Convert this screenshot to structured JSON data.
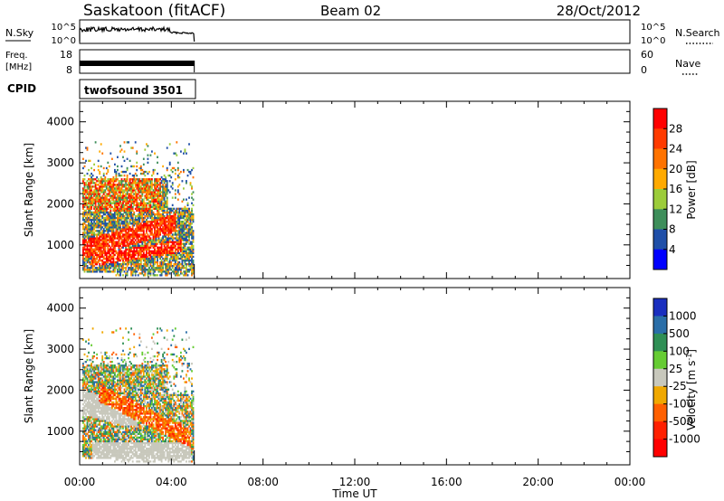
{
  "header": {
    "station": "Saskatoon (fitACF)",
    "beam": "Beam 02",
    "date": "28/Oct/2012"
  },
  "panels": {
    "nsky_label": "N.Sky",
    "nsky_ticks": [
      "10^5",
      "10^0"
    ],
    "nsearch_label": "N.Search",
    "freq_label_1": "Freq.",
    "freq_label_2": "[MHz]",
    "freq_ticks": [
      "18",
      "8"
    ],
    "nave_label": "Nave",
    "nave_ticks": [
      "60",
      "0"
    ],
    "cpid_label": "CPID",
    "cpid_value": "twofsound 3501"
  },
  "chart_data": [
    {
      "type": "heatmap",
      "name": "power",
      "ylabel": "Slant Range [km]",
      "xlabel": "",
      "ylim": [
        180,
        4500
      ],
      "yticks": [
        1000,
        2000,
        3000,
        4000
      ],
      "xlim": [
        0,
        24
      ],
      "data_extent_hours": [
        0,
        5
      ],
      "colorbar_label": "Power [dB]",
      "colorbar_ticks": [
        "28",
        "24",
        "20",
        "16",
        "12",
        "8",
        "4"
      ],
      "colors": [
        "#ff0000",
        "#ff3b00",
        "#ff7300",
        "#ffaa00",
        "#9ccc3a",
        "#3e8e5a",
        "#1f4fa8",
        "#0000ff"
      ]
    },
    {
      "type": "heatmap",
      "name": "velocity",
      "ylabel": "Slant Range [km]",
      "xlabel": "Time UT",
      "ylim": [
        180,
        4500
      ],
      "yticks": [
        1000,
        2000,
        3000,
        4000
      ],
      "xlim": [
        0,
        24
      ],
      "xticks": [
        "00:00",
        "04:00",
        "08:00",
        "12:00",
        "16:00",
        "20:00",
        "00:00"
      ],
      "data_extent_hours": [
        0,
        5
      ],
      "colorbar_label": "Velocity [m s",
      "colorbar_label_sup": "-1",
      "colorbar_label_end": "]",
      "colorbar_ticks": [
        "1000",
        "500",
        "100",
        "25",
        "-25",
        "-100",
        "-500",
        "-1000"
      ],
      "colors": [
        "#1a2fbf",
        "#2a6ea8",
        "#2f8f55",
        "#66cc33",
        "#c8c8bc",
        "#f0a800",
        "#ff6000",
        "#ff2000",
        "#ff0000"
      ]
    }
  ]
}
